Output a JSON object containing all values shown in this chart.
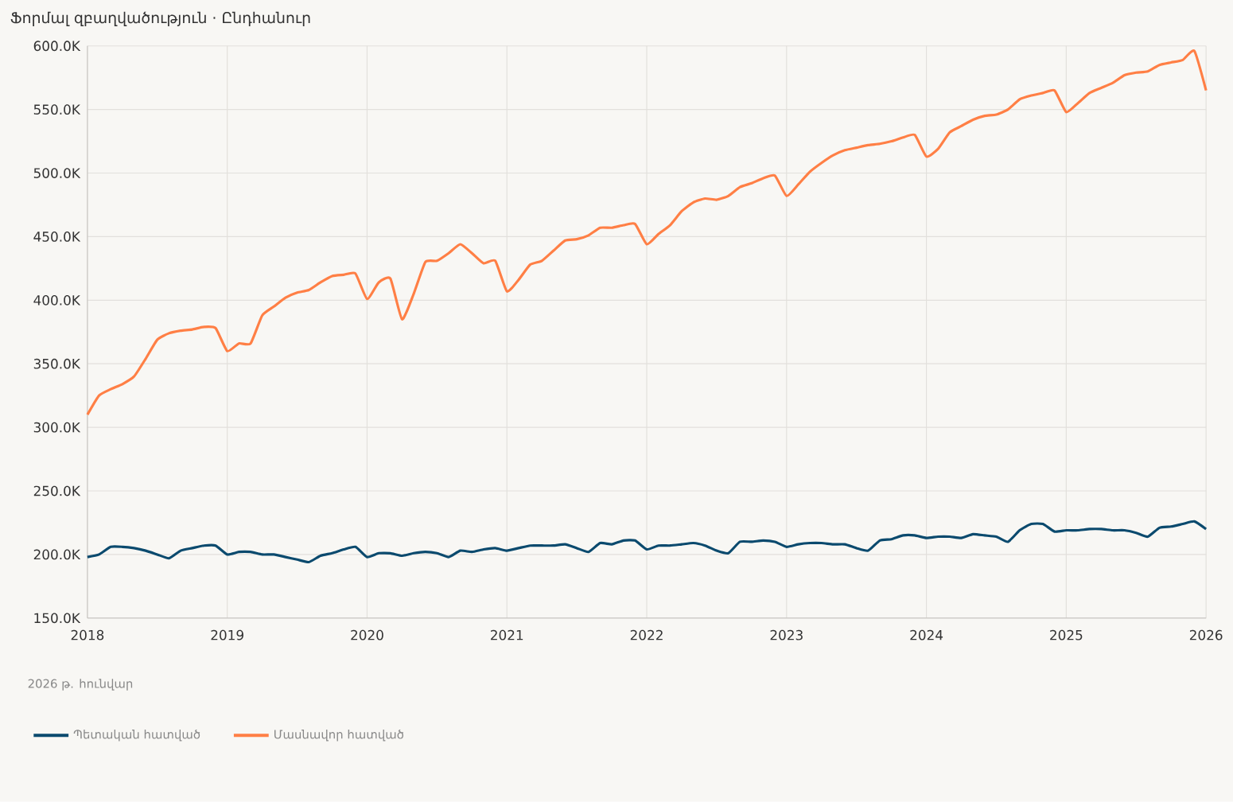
{
  "chart_data": {
    "type": "line",
    "title": "Ֆորմալ զբաղվածություն · Ընդհանուր",
    "annotations": [
      "2026 թ. հունվար"
    ],
    "x": [
      "2018-01",
      "2018-02",
      "2018-03",
      "2018-04",
      "2018-05",
      "2018-06",
      "2018-07",
      "2018-08",
      "2018-09",
      "2018-10",
      "2018-11",
      "2018-12",
      "2019-01",
      "2019-02",
      "2019-03",
      "2019-04",
      "2019-05",
      "2019-06",
      "2019-07",
      "2019-08",
      "2019-09",
      "2019-10",
      "2019-11",
      "2019-12",
      "2020-01",
      "2020-02",
      "2020-03",
      "2020-04",
      "2020-05",
      "2020-06",
      "2020-07",
      "2020-08",
      "2020-09",
      "2020-10",
      "2020-11",
      "2020-12",
      "2021-01",
      "2021-02",
      "2021-03",
      "2021-04",
      "2021-05",
      "2021-06",
      "2021-07",
      "2021-08",
      "2021-09",
      "2021-10",
      "2021-11",
      "2021-12",
      "2022-01",
      "2022-02",
      "2022-03",
      "2022-04",
      "2022-05",
      "2022-06",
      "2022-07",
      "2022-08",
      "2022-09",
      "2022-10",
      "2022-11",
      "2022-12",
      "2023-01",
      "2023-02",
      "2023-03",
      "2023-04",
      "2023-05",
      "2023-06",
      "2023-07",
      "2023-08",
      "2023-09",
      "2023-10",
      "2023-11",
      "2023-12",
      "2024-01",
      "2024-02",
      "2024-03",
      "2024-04",
      "2024-05",
      "2024-06",
      "2024-07",
      "2024-08",
      "2024-09",
      "2024-10",
      "2024-11",
      "2024-12",
      "2025-01",
      "2025-02",
      "2025-03",
      "2025-04",
      "2025-05",
      "2025-06",
      "2025-07",
      "2025-08",
      "2025-09",
      "2025-10",
      "2025-11",
      "2025-12",
      "2026-01"
    ],
    "series": [
      {
        "name": "Պետական հատված",
        "color": "#0b4a6e",
        "values": [
          198000,
          200000,
          206000,
          206000,
          205000,
          203000,
          200000,
          197000,
          203000,
          205000,
          207000,
          207000,
          200000,
          202000,
          202000,
          200000,
          200000,
          198000,
          196000,
          194000,
          199000,
          201000,
          204000,
          206000,
          198000,
          201000,
          201000,
          199000,
          201000,
          202000,
          201000,
          198000,
          203000,
          202000,
          204000,
          205000,
          203000,
          205000,
          207000,
          207000,
          207000,
          208000,
          205000,
          202000,
          209000,
          208000,
          211000,
          211000,
          204000,
          207000,
          207000,
          208000,
          209000,
          207000,
          203000,
          201000,
          210000,
          210000,
          211000,
          210000,
          206000,
          208000,
          209000,
          209000,
          208000,
          208000,
          205000,
          203000,
          211000,
          212000,
          215000,
          215000,
          213000,
          214000,
          214000,
          213000,
          216000,
          215000,
          214000,
          210000,
          219000,
          224000,
          224000,
          218000,
          219000,
          219000,
          220000,
          220000,
          219000,
          219000,
          217000,
          214000,
          221000,
          222000,
          224000,
          226000,
          220000
        ]
      },
      {
        "name": "Մասնավոր հատված",
        "color": "#ff7f45",
        "values": [
          310000,
          325000,
          330000,
          334000,
          340000,
          354000,
          369000,
          374000,
          376000,
          377000,
          379000,
          378000,
          360000,
          366000,
          366000,
          388000,
          395000,
          402000,
          406000,
          408000,
          414000,
          419000,
          420000,
          421000,
          401000,
          414000,
          417000,
          385000,
          405000,
          430000,
          431000,
          437000,
          444000,
          437000,
          429000,
          431000,
          407000,
          416000,
          428000,
          431000,
          439000,
          447000,
          448000,
          451000,
          457000,
          457000,
          459000,
          460000,
          444000,
          452000,
          459000,
          470000,
          477000,
          480000,
          479000,
          482000,
          489000,
          492000,
          496000,
          498000,
          482000,
          491000,
          501000,
          508000,
          514000,
          518000,
          520000,
          522000,
          523000,
          525000,
          528000,
          530000,
          513000,
          519000,
          532000,
          537000,
          542000,
          545000,
          546000,
          550000,
          558000,
          561000,
          563000,
          565000,
          548000,
          555000,
          563000,
          567000,
          571000,
          577000,
          579000,
          580000,
          585000,
          587000,
          589000,
          596000,
          565000
        ]
      }
    ],
    "xlim": [
      "2018",
      "2026"
    ],
    "xticks": [
      "2018",
      "2019",
      "2020",
      "2021",
      "2022",
      "2023",
      "2024",
      "2025",
      "2026"
    ],
    "ylim": [
      150000,
      600000
    ],
    "yticks": [
      {
        "value": 150000,
        "label": "150.0K"
      },
      {
        "value": 200000,
        "label": "200.0K"
      },
      {
        "value": 250000,
        "label": "250.0K"
      },
      {
        "value": 300000,
        "label": "300.0K"
      },
      {
        "value": 350000,
        "label": "350.0K"
      },
      {
        "value": 400000,
        "label": "400.0K"
      },
      {
        "value": 450000,
        "label": "450.0K"
      },
      {
        "value": 500000,
        "label": "500.0K"
      },
      {
        "value": 550000,
        "label": "550.0K"
      },
      {
        "value": 600000,
        "label": "600.0K"
      }
    ],
    "grid": true,
    "legend": "bottom left",
    "marker": "none",
    "line_style": "solid"
  }
}
